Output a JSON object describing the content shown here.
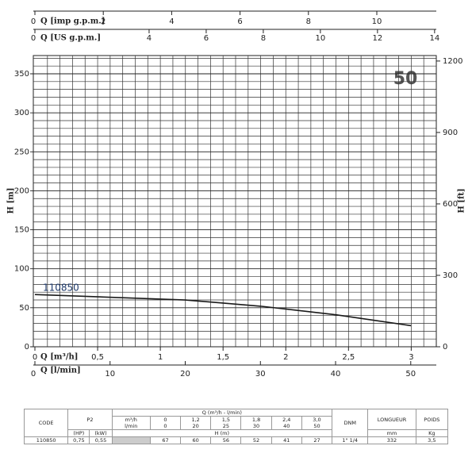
{
  "chart_data": {
    "type": "line",
    "badge": "50",
    "series": [
      {
        "name": "110850",
        "color": "#1a1a1a",
        "x": [
          0,
          1.2,
          1.5,
          1.8,
          2.4,
          3.0
        ],
        "values": [
          67,
          60,
          56,
          52,
          41,
          27
        ]
      }
    ],
    "xlabel": "Q [m³/h]",
    "xlim": [
      0,
      3.2
    ],
    "xticks": [
      0,
      {
        "value": 0.5,
        "label": "0,5"
      },
      1,
      {
        "value": 1.5,
        "label": "1,5"
      },
      2,
      {
        "value": 2.5,
        "label": "2,5"
      },
      3
    ],
    "ylabel": "H [m]",
    "ylim": [
      0,
      373.4
    ],
    "yticks": [
      0,
      50,
      100,
      150,
      200,
      250,
      300,
      350
    ],
    "y2label": "H [ft]",
    "y2lim": [
      0,
      1223
    ],
    "y2ticks": [
      0,
      300,
      600,
      900,
      1200
    ],
    "grid": true,
    "extra_x_axes": [
      {
        "label": "Q [l/min]",
        "xlim": [
          0,
          53.4
        ],
        "xticks": [
          0,
          10,
          20,
          30,
          40,
          50
        ]
      },
      {
        "label": "Q [imp g.p.m.]",
        "xlim": [
          0,
          11.74
        ],
        "xticks": [
          0,
          2,
          4,
          6,
          8,
          10
        ]
      },
      {
        "label": "Q [US g.p.m.]",
        "xlim": [
          0,
          14.06
        ],
        "xticks": [
          0,
          4,
          6,
          8,
          10,
          12,
          14
        ]
      }
    ]
  },
  "table": {
    "code": "CODE",
    "p2": "P2",
    "q_header": "Q (m³/h - l/min)",
    "dnm": "DNM",
    "longueur": "LONGUEUR",
    "poids": "POIDS",
    "q_units": [
      "m³/h",
      "l/min"
    ],
    "q_m3h": [
      "0",
      "1,2",
      "1,5",
      "1,8",
      "2,4",
      "3,0"
    ],
    "q_lmin": [
      "0",
      "20",
      "25",
      "30",
      "40",
      "50"
    ],
    "hp": "(HP)",
    "kw": "(kW)",
    "h_header": "H (m)",
    "mm": "mm",
    "kg": "Kg",
    "row": {
      "code": "110850",
      "hp": "0,75",
      "kw": "0,55",
      "h": [
        "67",
        "60",
        "56",
        "52",
        "41",
        "27"
      ],
      "dnm": "1\" 1/4",
      "longueur": "332",
      "poids": "3,5"
    }
  }
}
